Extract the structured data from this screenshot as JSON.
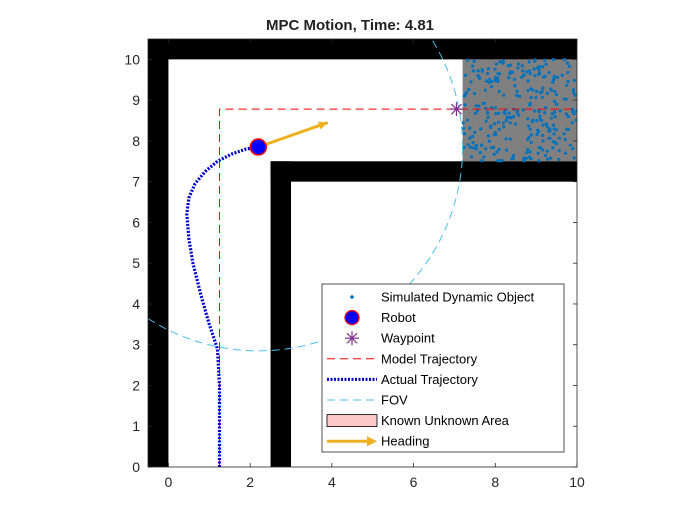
{
  "chart_data": {
    "type": "scatter",
    "title": "MPC Motion, Time: 4.81",
    "xlabel": "",
    "ylabel": "",
    "xlim": [
      -0.5,
      10
    ],
    "ylim": [
      0,
      10.5
    ],
    "xticks": [
      0,
      2,
      4,
      6,
      8,
      10
    ],
    "yticks": [
      0,
      1,
      2,
      3,
      4,
      5,
      6,
      7,
      8,
      9,
      10
    ],
    "grid": false,
    "legend_position": "lower-right",
    "walls": [
      {
        "x": [
          -0.5,
          0
        ],
        "y": [
          0,
          10.5
        ]
      },
      {
        "x": [
          -0.5,
          10
        ],
        "y": [
          10,
          10.5
        ]
      },
      {
        "x": [
          2.5,
          3
        ],
        "y": [
          0,
          7.5
        ]
      },
      {
        "x": [
          2.5,
          10
        ],
        "y": [
          7,
          7.5
        ]
      }
    ],
    "unknown_area": {
      "x": [
        7.2,
        10
      ],
      "y": [
        7.5,
        10
      ]
    },
    "series": [
      {
        "name": "Simulated Dynamic Object",
        "color": "#0072BD",
        "marker": "dot",
        "region": {
          "x": [
            7.2,
            10
          ],
          "y": [
            7.5,
            10
          ]
        },
        "count": 280
      },
      {
        "name": "Robot",
        "color": "#0000ff",
        "edge_color": "#ff0000",
        "x": [
          2.2
        ],
        "y": [
          7.85
        ]
      },
      {
        "name": "Waypoint",
        "color": "#7E2F8E",
        "marker": "asterisk",
        "x": [
          7.05
        ],
        "y": [
          8.78
        ]
      },
      {
        "name": "Model Trajectory",
        "color": "#ff0000",
        "line": "dashed",
        "x": [
          1.25,
          1.25,
          10
        ],
        "y": [
          0,
          8.78,
          8.78
        ]
      },
      {
        "name": "Actual Trajectory",
        "color": "#0000cd",
        "line": "dotted",
        "x": [
          1.25,
          1.25,
          1.25,
          1.2,
          1.0,
          0.8,
          0.6,
          0.5,
          0.45,
          0.5,
          0.65,
          0.9,
          1.2,
          1.55,
          1.9,
          2.2
        ],
        "y": [
          0.0,
          1.0,
          2.0,
          2.9,
          3.5,
          4.2,
          5.0,
          5.6,
          6.2,
          6.6,
          6.95,
          7.25,
          7.5,
          7.68,
          7.8,
          7.85
        ]
      },
      {
        "name": "FOV",
        "color": "#4DBEEE",
        "line": "dashed",
        "center": [
          2.2,
          7.85
        ],
        "radius": 5.0
      },
      {
        "name": "Known Unknown Area",
        "color": "#ffc8c8",
        "edge_color": "#000000"
      },
      {
        "name": "Heading",
        "color": "#EDB120",
        "from": [
          2.2,
          7.85
        ],
        "to": [
          3.9,
          8.45
        ]
      }
    ],
    "legend_entries": [
      "Simulated Dynamic Object",
      "Robot",
      "Waypoint",
      "Model Trajectory",
      "Actual Trajectory",
      "FOV",
      "Known Unknown Area",
      "Heading"
    ]
  }
}
